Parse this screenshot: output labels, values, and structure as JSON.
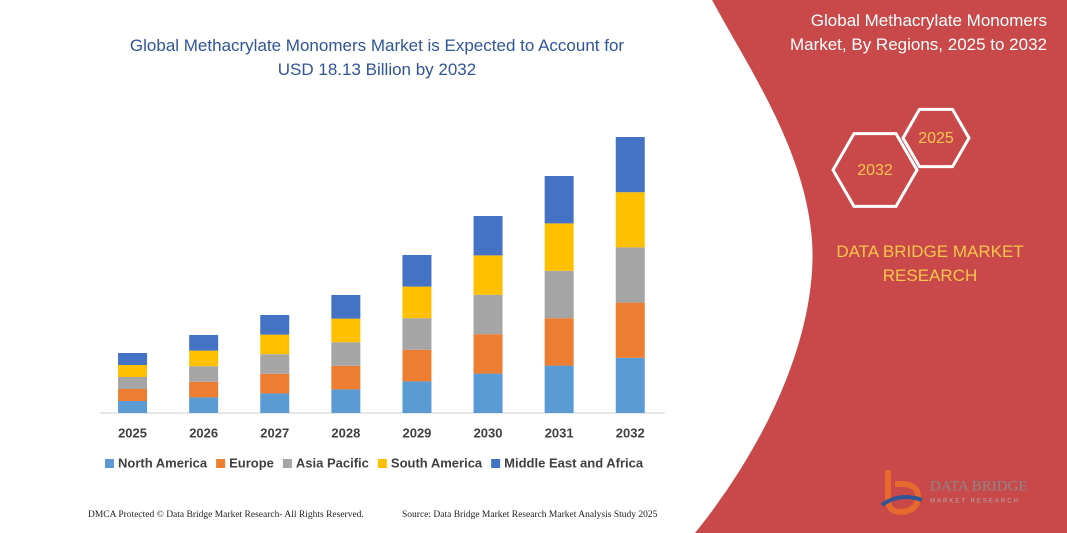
{
  "chart_data": {
    "type": "stacked_bar",
    "title": "Global Methacrylate Monomers Market is Expected to Account for USD 18.13 Billion by 2032",
    "categories": [
      "2025",
      "2026",
      "2027",
      "2028",
      "2029",
      "2030",
      "2031",
      "2032"
    ],
    "series": [
      {
        "name": "North America",
        "color": "#5b9bd5",
        "values": [
          12,
          15.6,
          19.6,
          23.6,
          31.6,
          39.4,
          47.4,
          55.2
        ]
      },
      {
        "name": "Europe",
        "color": "#ed7d31",
        "values": [
          12,
          15.6,
          19.6,
          23.6,
          31.6,
          39.4,
          47.4,
          55.2
        ]
      },
      {
        "name": "Asia Pacific",
        "color": "#a5a5a5",
        "values": [
          12,
          15.6,
          19.6,
          23.6,
          31.6,
          39.4,
          47.4,
          55.2
        ]
      },
      {
        "name": "South America",
        "color": "#ffc000",
        "values": [
          12,
          15.6,
          19.6,
          23.6,
          31.6,
          39.4,
          47.4,
          55.2
        ]
      },
      {
        "name": "Middle East and Africa",
        "color": "#4472c4",
        "values": [
          12,
          15.6,
          19.6,
          23.6,
          31.6,
          39.4,
          47.4,
          55.2
        ]
      }
    ],
    "ylim": [
      0,
      300
    ]
  },
  "panel": {
    "title": "Global Methacrylate Monomers Market, By Regions, 2025 to 2032",
    "hexagons": [
      "2025",
      "2032"
    ],
    "brand": "DATA BRIDGE MARKET RESEARCH"
  },
  "footer": {
    "copyright": "DMCA Protected © Data Bridge Market Research- All Rights Reserved.",
    "source": "Source: Data Bridge Market Research  Market Analysis Study 2025"
  },
  "logo": {
    "name": "DATA BRIDGE",
    "tagline": "MARKET RESEARCH"
  }
}
